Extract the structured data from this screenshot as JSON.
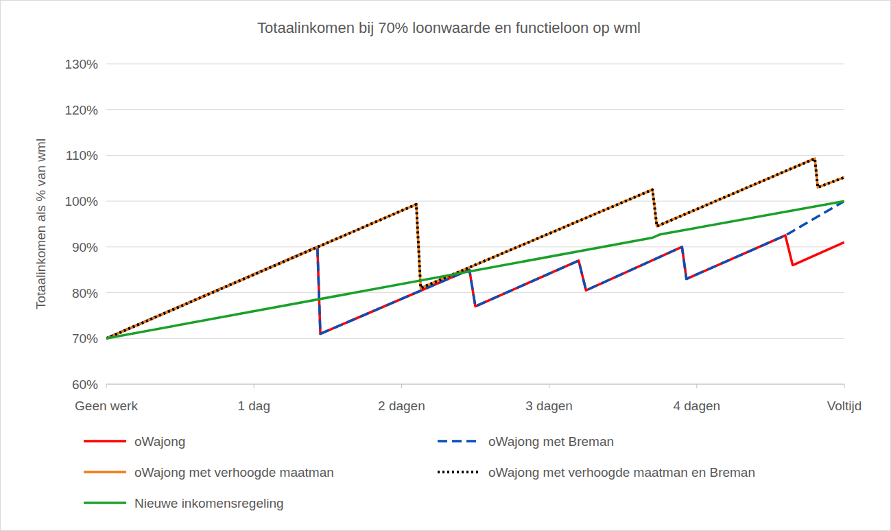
{
  "chart_data": {
    "type": "line",
    "title": "Totaalinkomen bij 70% loonwaarde en functieloon op wml",
    "y_label": "Totaalinkomen als % van wml",
    "xlim": [
      0,
      5
    ],
    "ylim": [
      60,
      130
    ],
    "xticks": [
      {
        "value": 0,
        "label": "Geen werk"
      },
      {
        "value": 1,
        "label": "1 dag"
      },
      {
        "value": 2,
        "label": "2 dagen"
      },
      {
        "value": 3,
        "label": "3 dagen"
      },
      {
        "value": 4,
        "label": "4 dagen"
      },
      {
        "value": 5,
        "label": "Voltijd"
      }
    ],
    "yticks": [
      {
        "value": 60,
        "label": "60%"
      },
      {
        "value": 70,
        "label": "70%"
      },
      {
        "value": 80,
        "label": "80%"
      },
      {
        "value": 90,
        "label": "90%"
      },
      {
        "value": 100,
        "label": "100%"
      },
      {
        "value": 110,
        "label": "110%"
      },
      {
        "value": 120,
        "label": "120%"
      },
      {
        "value": 130,
        "label": "130%"
      }
    ],
    "grid": true,
    "legend": "bottom",
    "series": [
      {
        "name": "oWajong",
        "color": "#ff0000",
        "line_style": "solid",
        "x": [
          0,
          1.43,
          1.45,
          2.46,
          2.5,
          3.2,
          3.25,
          3.9,
          3.93,
          4.6,
          4.65,
          5
        ],
        "values": [
          70,
          90,
          71,
          85,
          77,
          87,
          80.5,
          90,
          83,
          92.5,
          86,
          91
        ]
      },
      {
        "name": "oWajong met Breman",
        "color": "#0a4fb5",
        "line_style": "dashed",
        "x": [
          0,
          1.43,
          1.45,
          2.46,
          2.5,
          3.2,
          3.25,
          3.9,
          3.93,
          4.6,
          5
        ],
        "values": [
          70,
          90,
          71,
          85,
          77,
          87,
          80.5,
          90,
          83,
          92.5,
          100
        ]
      },
      {
        "name": "oWajong met verhoogde maatman",
        "color": "#f07b14",
        "line_style": "solid",
        "x": [
          0,
          2.1,
          2.13,
          3.7,
          3.73,
          4.8,
          4.82,
          5
        ],
        "values": [
          70,
          99.3,
          81,
          102.5,
          94.5,
          109.3,
          103,
          105.2
        ]
      },
      {
        "name": "oWajong met verhoogde maatman en Breman",
        "color": "#000000",
        "line_style": "dotted",
        "x": [
          0,
          2.1,
          2.13,
          3.7,
          3.73,
          4.8,
          4.82,
          5
        ],
        "values": [
          70,
          99.3,
          81,
          102.5,
          94.5,
          109.3,
          103,
          105.2
        ]
      },
      {
        "name": "Nieuwe inkomensregeling",
        "color": "#1aa02a",
        "line_style": "solid",
        "x": [
          0,
          3.7,
          3.75,
          5
        ],
        "values": [
          70,
          92,
          92.7,
          100
        ]
      }
    ]
  }
}
